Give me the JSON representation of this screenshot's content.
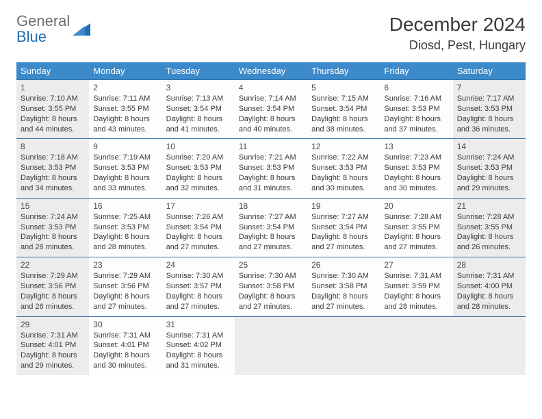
{
  "brand": {
    "general": "General",
    "blue": "Blue"
  },
  "title": "December 2024",
  "location": "Diosd, Pest, Hungary",
  "colors": {
    "header_bg": "#3c8ac9",
    "header_text": "#ffffff",
    "cell_border": "#2f6fa8",
    "shaded_bg": "#ececec",
    "body_text": "#3a3a3a",
    "brand_gray": "#6f6f6f",
    "brand_blue": "#1f6fb2"
  },
  "weekdays": [
    "Sunday",
    "Monday",
    "Tuesday",
    "Wednesday",
    "Thursday",
    "Friday",
    "Saturday"
  ],
  "weeks": [
    [
      {
        "day": 1,
        "shaded": true,
        "sunrise": "7:10 AM",
        "sunset": "3:55 PM",
        "dl1": "Daylight: 8 hours",
        "dl2": "and 44 minutes."
      },
      {
        "day": 2,
        "shaded": false,
        "sunrise": "7:11 AM",
        "sunset": "3:55 PM",
        "dl1": "Daylight: 8 hours",
        "dl2": "and 43 minutes."
      },
      {
        "day": 3,
        "shaded": false,
        "sunrise": "7:13 AM",
        "sunset": "3:54 PM",
        "dl1": "Daylight: 8 hours",
        "dl2": "and 41 minutes."
      },
      {
        "day": 4,
        "shaded": false,
        "sunrise": "7:14 AM",
        "sunset": "3:54 PM",
        "dl1": "Daylight: 8 hours",
        "dl2": "and 40 minutes."
      },
      {
        "day": 5,
        "shaded": false,
        "sunrise": "7:15 AM",
        "sunset": "3:54 PM",
        "dl1": "Daylight: 8 hours",
        "dl2": "and 38 minutes."
      },
      {
        "day": 6,
        "shaded": false,
        "sunrise": "7:16 AM",
        "sunset": "3:53 PM",
        "dl1": "Daylight: 8 hours",
        "dl2": "and 37 minutes."
      },
      {
        "day": 7,
        "shaded": true,
        "sunrise": "7:17 AM",
        "sunset": "3:53 PM",
        "dl1": "Daylight: 8 hours",
        "dl2": "and 36 minutes."
      }
    ],
    [
      {
        "day": 8,
        "shaded": true,
        "sunrise": "7:18 AM",
        "sunset": "3:53 PM",
        "dl1": "Daylight: 8 hours",
        "dl2": "and 34 minutes."
      },
      {
        "day": 9,
        "shaded": false,
        "sunrise": "7:19 AM",
        "sunset": "3:53 PM",
        "dl1": "Daylight: 8 hours",
        "dl2": "and 33 minutes."
      },
      {
        "day": 10,
        "shaded": false,
        "sunrise": "7:20 AM",
        "sunset": "3:53 PM",
        "dl1": "Daylight: 8 hours",
        "dl2": "and 32 minutes."
      },
      {
        "day": 11,
        "shaded": false,
        "sunrise": "7:21 AM",
        "sunset": "3:53 PM",
        "dl1": "Daylight: 8 hours",
        "dl2": "and 31 minutes."
      },
      {
        "day": 12,
        "shaded": false,
        "sunrise": "7:22 AM",
        "sunset": "3:53 PM",
        "dl1": "Daylight: 8 hours",
        "dl2": "and 30 minutes."
      },
      {
        "day": 13,
        "shaded": false,
        "sunrise": "7:23 AM",
        "sunset": "3:53 PM",
        "dl1": "Daylight: 8 hours",
        "dl2": "and 30 minutes."
      },
      {
        "day": 14,
        "shaded": true,
        "sunrise": "7:24 AM",
        "sunset": "3:53 PM",
        "dl1": "Daylight: 8 hours",
        "dl2": "and 29 minutes."
      }
    ],
    [
      {
        "day": 15,
        "shaded": true,
        "sunrise": "7:24 AM",
        "sunset": "3:53 PM",
        "dl1": "Daylight: 8 hours",
        "dl2": "and 28 minutes."
      },
      {
        "day": 16,
        "shaded": false,
        "sunrise": "7:25 AM",
        "sunset": "3:53 PM",
        "dl1": "Daylight: 8 hours",
        "dl2": "and 28 minutes."
      },
      {
        "day": 17,
        "shaded": false,
        "sunrise": "7:26 AM",
        "sunset": "3:54 PM",
        "dl1": "Daylight: 8 hours",
        "dl2": "and 27 minutes."
      },
      {
        "day": 18,
        "shaded": false,
        "sunrise": "7:27 AM",
        "sunset": "3:54 PM",
        "dl1": "Daylight: 8 hours",
        "dl2": "and 27 minutes."
      },
      {
        "day": 19,
        "shaded": false,
        "sunrise": "7:27 AM",
        "sunset": "3:54 PM",
        "dl1": "Daylight: 8 hours",
        "dl2": "and 27 minutes."
      },
      {
        "day": 20,
        "shaded": false,
        "sunrise": "7:28 AM",
        "sunset": "3:55 PM",
        "dl1": "Daylight: 8 hours",
        "dl2": "and 27 minutes."
      },
      {
        "day": 21,
        "shaded": true,
        "sunrise": "7:28 AM",
        "sunset": "3:55 PM",
        "dl1": "Daylight: 8 hours",
        "dl2": "and 26 minutes."
      }
    ],
    [
      {
        "day": 22,
        "shaded": true,
        "sunrise": "7:29 AM",
        "sunset": "3:56 PM",
        "dl1": "Daylight: 8 hours",
        "dl2": "and 26 minutes."
      },
      {
        "day": 23,
        "shaded": false,
        "sunrise": "7:29 AM",
        "sunset": "3:56 PM",
        "dl1": "Daylight: 8 hours",
        "dl2": "and 27 minutes."
      },
      {
        "day": 24,
        "shaded": false,
        "sunrise": "7:30 AM",
        "sunset": "3:57 PM",
        "dl1": "Daylight: 8 hours",
        "dl2": "and 27 minutes."
      },
      {
        "day": 25,
        "shaded": false,
        "sunrise": "7:30 AM",
        "sunset": "3:58 PM",
        "dl1": "Daylight: 8 hours",
        "dl2": "and 27 minutes."
      },
      {
        "day": 26,
        "shaded": false,
        "sunrise": "7:30 AM",
        "sunset": "3:58 PM",
        "dl1": "Daylight: 8 hours",
        "dl2": "and 27 minutes."
      },
      {
        "day": 27,
        "shaded": false,
        "sunrise": "7:31 AM",
        "sunset": "3:59 PM",
        "dl1": "Daylight: 8 hours",
        "dl2": "and 28 minutes."
      },
      {
        "day": 28,
        "shaded": true,
        "sunrise": "7:31 AM",
        "sunset": "4:00 PM",
        "dl1": "Daylight: 8 hours",
        "dl2": "and 28 minutes."
      }
    ],
    [
      {
        "day": 29,
        "shaded": true,
        "sunrise": "7:31 AM",
        "sunset": "4:01 PM",
        "dl1": "Daylight: 8 hours",
        "dl2": "and 29 minutes."
      },
      {
        "day": 30,
        "shaded": false,
        "sunrise": "7:31 AM",
        "sunset": "4:01 PM",
        "dl1": "Daylight: 8 hours",
        "dl2": "and 30 minutes."
      },
      {
        "day": 31,
        "shaded": false,
        "sunrise": "7:31 AM",
        "sunset": "4:02 PM",
        "dl1": "Daylight: 8 hours",
        "dl2": "and 31 minutes."
      },
      {
        "empty": true
      },
      {
        "empty": true
      },
      {
        "empty": true
      },
      {
        "empty": true
      }
    ]
  ],
  "labels": {
    "sunrise_prefix": "Sunrise: ",
    "sunset_prefix": "Sunset: "
  }
}
